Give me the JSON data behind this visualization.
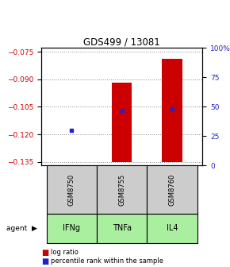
{
  "title": "GDS499 / 13081",
  "samples": [
    "GSM8750",
    "GSM8755",
    "GSM8760"
  ],
  "agents": [
    "IFNg",
    "TNFa",
    "IL4"
  ],
  "log_ratios": [
    -0.135,
    -0.092,
    -0.079
  ],
  "log_ratio_base": -0.135,
  "percentile_ranks": [
    30,
    47,
    48
  ],
  "ylim_left": [
    -0.137,
    -0.073
  ],
  "ylim_right": [
    0,
    100
  ],
  "yticks_left": [
    -0.075,
    -0.09,
    -0.105,
    -0.12,
    -0.135
  ],
  "yticks_right": [
    100,
    75,
    50,
    25,
    0
  ],
  "bar_color": "#cc0000",
  "dot_color": "#2222cc",
  "agent_bg": "#aaeea0",
  "sample_bg": "#cccccc",
  "grid_color": "#888888",
  "legend_bar_label": "log ratio",
  "legend_dot_label": "percentile rank within the sample"
}
